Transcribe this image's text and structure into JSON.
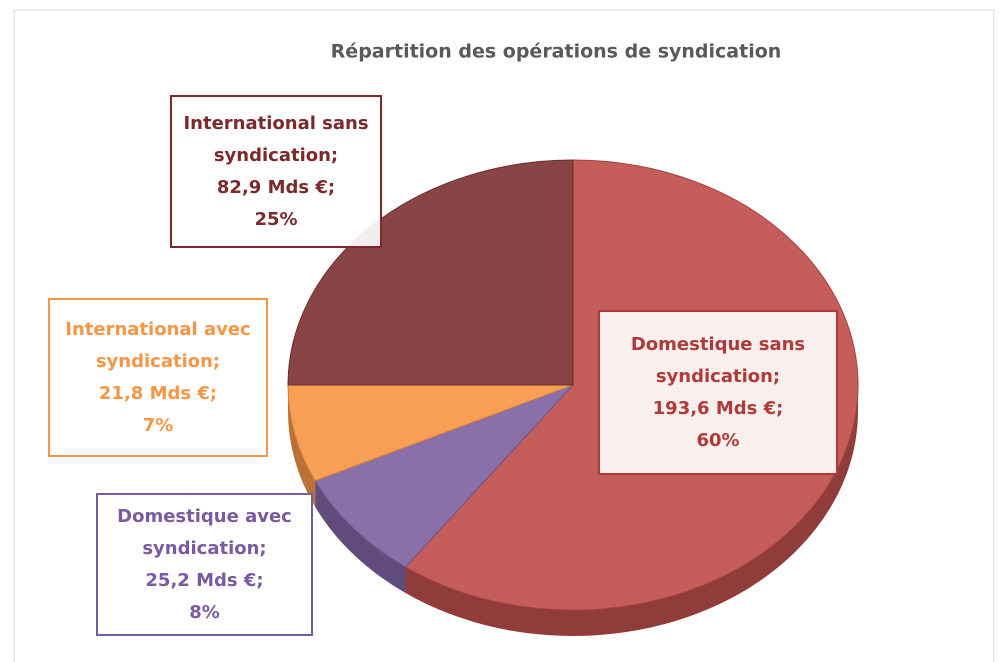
{
  "chart_data": {
    "type": "pie",
    "title": "Répartition des opérations de syndication",
    "categories": [
      "Domestique sans syndication;",
      "Domestique avec syndication;",
      "International avec syndication;",
      "International sans syndication;"
    ],
    "values": [
      60,
      8,
      7,
      25
    ],
    "value_labels": [
      "60%",
      "8%",
      "7%",
      "25%"
    ],
    "amounts": [
      193.6,
      25.2,
      21.8,
      82.9
    ],
    "amount_labels": [
      "193,6 Mds €;",
      "25,2 Mds €;",
      "21,8 Mds €;",
      "82,9 Mds €;"
    ],
    "colors": [
      "#c0504d",
      "#8064a2",
      "#f79646",
      "#7f3535"
    ],
    "label_colors": [
      "#b03a37",
      "#7a5aa0",
      "#f79646",
      "#7a2a2a"
    ],
    "three_d": true
  }
}
